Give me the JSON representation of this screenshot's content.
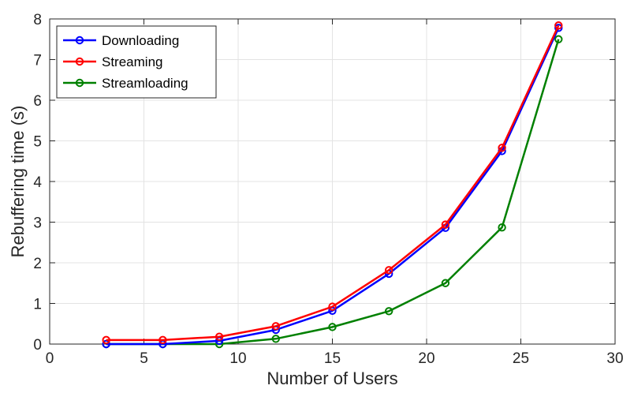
{
  "chart_data": {
    "type": "line",
    "title": "",
    "xlabel": "Number of Users",
    "ylabel": "Rebuffering time (s)",
    "xlim": [
      0,
      30
    ],
    "ylim": [
      0,
      8
    ],
    "xticks": [
      0,
      5,
      10,
      15,
      20,
      25,
      30
    ],
    "yticks": [
      0,
      1,
      2,
      3,
      4,
      5,
      6,
      7,
      8
    ],
    "grid": true,
    "legend_position": "top-left",
    "x": [
      3,
      6,
      9,
      12,
      15,
      18,
      21,
      24,
      27
    ],
    "series": [
      {
        "name": "Downloading",
        "color": "#0000ff",
        "marker": "circle-open",
        "values": [
          0.0,
          0.0,
          0.08,
          0.35,
          0.82,
          1.73,
          2.86,
          4.75,
          7.78
        ]
      },
      {
        "name": "Streaming",
        "color": "#ff0000",
        "marker": "circle-open",
        "values": [
          0.1,
          0.1,
          0.18,
          0.44,
          0.92,
          1.82,
          2.94,
          4.83,
          7.84
        ]
      },
      {
        "name": "Streamloading",
        "color": "#008000",
        "marker": "circle-open",
        "values": [
          0.0,
          0.0,
          0.0,
          0.13,
          0.42,
          0.81,
          1.5,
          2.87,
          7.5
        ]
      }
    ]
  }
}
